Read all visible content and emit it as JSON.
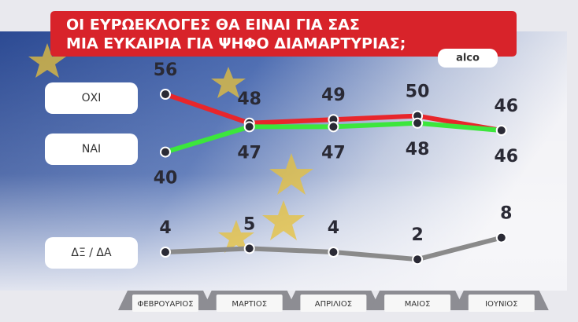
{
  "chart_data": {
    "type": "line",
    "title": [
      "ΟΙ ΕΥΡΩΕΚΛΟΓΕΣ ΘΑ ΕΙΝΑΙ ΓΙΑ ΣΑΣ",
      "ΜΙΑ ΕΥΚΑΙΡΙΑ ΓΙΑ ΨΗΦΟ ΔΙΑΜΑΡΤΥΡΙΑΣ;"
    ],
    "source": "alco",
    "categories": [
      "ΦΕΒΡΟΥΑΡΙΟΣ",
      "ΜΑΡΤΙΟΣ",
      "ΑΠΡΙΛΙΟΣ",
      "ΜΑΙΟΣ",
      "ΙΟΥΝΙΟΣ"
    ],
    "series": [
      {
        "name": "ΟΧΙ",
        "color": "#e8262b",
        "values": [
          56,
          48,
          49,
          50,
          46
        ]
      },
      {
        "name": "ΝΑΙ",
        "color": "#3ce63c",
        "values": [
          40,
          47,
          47,
          48,
          46
        ]
      },
      {
        "name": "ΔΞ / ΔΑ",
        "color": "#8a8a8a",
        "values": [
          4,
          5,
          4,
          2,
          8
        ]
      }
    ]
  }
}
